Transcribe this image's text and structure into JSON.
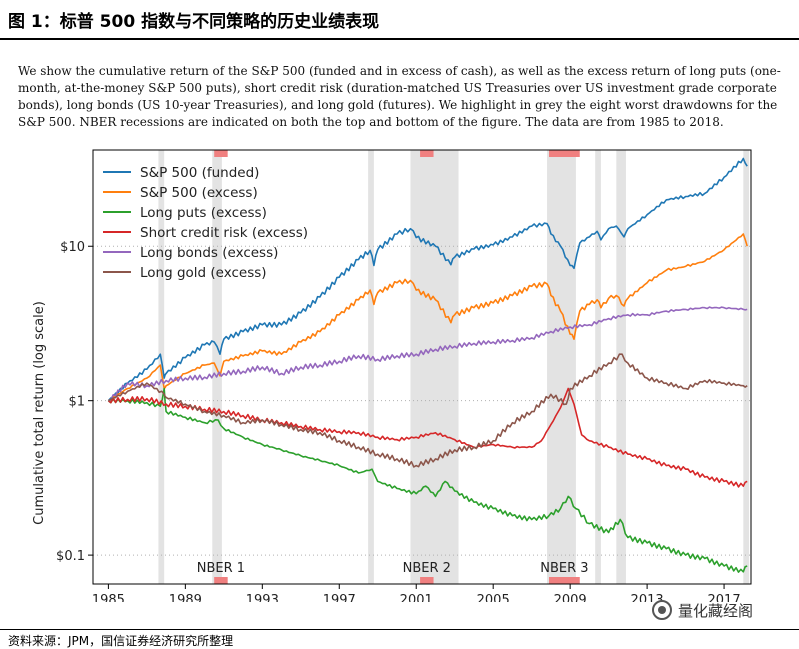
{
  "header": {
    "title": "图 1：标普 500 指数与不同策略的历史业绩表现"
  },
  "caption": "We show the cumulative return of the S&P 500 (funded and in excess of cash), as well as the excess return of long puts (one-month, at-the-money S&P 500 puts), short credit risk (duration-matched US Treasuries over US investment grade corporate bonds), long bonds (US 10-year Treasuries), and long gold (futures). We highlight in grey the eight worst drawdowns for the S&P 500. NBER recessions are indicated on both the top and bottom of the figure. The data are from 1985 to 2018.",
  "source": "资料来源：JPM，国信证券经济研究所整理",
  "watermark": "量化藏经阁",
  "chart_data": {
    "type": "line",
    "scale": "log",
    "ylabel": "Cumulative total return (log scale)",
    "xlabel": "",
    "xlim": [
      1984.2,
      2018.4
    ],
    "ylim": [
      0.065,
      42
    ],
    "x_ticks": [
      1985,
      1989,
      1993,
      1997,
      2001,
      2005,
      2009,
      2013,
      2017
    ],
    "x_tick_labels": [
      "1985",
      "1989",
      "1993",
      "1997",
      "2001",
      "2005",
      "2009",
      "2013",
      "2017"
    ],
    "y_ticks": [
      0.1,
      1,
      10
    ],
    "y_tick_labels": [
      "$0.1",
      "$1",
      "$10"
    ],
    "grid": "horizontal dotted",
    "legend_position": "top-left",
    "drawdowns": [
      [
        1987.6,
        1987.9
      ],
      [
        1990.4,
        1990.9
      ],
      [
        1998.5,
        1998.8
      ],
      [
        2000.7,
        2003.2
      ],
      [
        2007.8,
        2009.3
      ],
      [
        2010.3,
        2010.6
      ],
      [
        2011.4,
        2011.9
      ],
      [
        2018.0,
        2018.3
      ]
    ],
    "recessions": [
      {
        "label": "NBER 1",
        "start": 1990.5,
        "end": 1991.2
      },
      {
        "label": "NBER 2",
        "start": 2001.2,
        "end": 2001.9
      },
      {
        "label": "NBER 3",
        "start": 2007.9,
        "end": 2009.5
      }
    ],
    "series": [
      {
        "name": "S&P 500 (funded)",
        "color": "#1f77b4",
        "x": [
          1985,
          1986,
          1987,
          1987.7,
          1987.9,
          1988,
          1989,
          1990,
          1990.5,
          1990.8,
          1991,
          1992,
          1993,
          1994,
          1995,
          1996,
          1997,
          1998,
          1998.6,
          1998.8,
          1999,
          2000,
          2000.7,
          2001,
          2002,
          2002.8,
          2003,
          2004,
          2005,
          2006,
          2007,
          2007.8,
          2008,
          2008.5,
          2009,
          2009.2,
          2009.5,
          2010,
          2010.4,
          2010.6,
          2011,
          2011.4,
          2011.8,
          2012,
          2013,
          2014,
          2015,
          2016,
          2017,
          2018,
          2018.2
        ],
        "values": [
          1.0,
          1.3,
          1.6,
          2.0,
          1.4,
          1.5,
          1.9,
          2.3,
          2.4,
          2.0,
          2.5,
          2.8,
          3.1,
          3.1,
          3.7,
          4.7,
          6.3,
          8.2,
          9.4,
          7.5,
          9.5,
          12.0,
          13.0,
          11.4,
          10.0,
          7.6,
          8.5,
          9.6,
          10.2,
          11.5,
          13.5,
          14.0,
          12.0,
          10.0,
          7.5,
          7.2,
          10.5,
          11.5,
          12.5,
          11.0,
          13.0,
          13.5,
          11.5,
          13.0,
          16.0,
          20.0,
          21.0,
          22.0,
          28.0,
          37.0,
          33.0
        ]
      },
      {
        "name": "S&P 500 (excess)",
        "color": "#ff7f0e",
        "x": [
          1985,
          1986,
          1987,
          1987.7,
          1987.9,
          1988,
          1989,
          1990,
          1990.5,
          1990.8,
          1991,
          1992,
          1993,
          1994,
          1995,
          1996,
          1997,
          1998,
          1998.6,
          1998.8,
          1999,
          2000,
          2000.7,
          2001,
          2002,
          2002.8,
          2003,
          2004,
          2005,
          2006,
          2007,
          2007.8,
          2008,
          2008.5,
          2009,
          2009.2,
          2009.5,
          2010,
          2010.4,
          2010.6,
          2011,
          2011.4,
          2011.8,
          2012,
          2013,
          2014,
          2015,
          2016,
          2017,
          2018,
          2018.2
        ],
        "values": [
          1.0,
          1.2,
          1.4,
          1.7,
          1.2,
          1.25,
          1.5,
          1.7,
          1.75,
          1.45,
          1.8,
          1.95,
          2.1,
          2.0,
          2.4,
          2.8,
          3.6,
          4.5,
          5.2,
          4.2,
          5.0,
          5.8,
          6.0,
          5.2,
          4.5,
          3.2,
          3.6,
          4.0,
          4.3,
          4.8,
          5.5,
          5.7,
          4.8,
          3.8,
          2.7,
          2.5,
          3.8,
          4.2,
          4.5,
          4.0,
          4.6,
          4.8,
          4.1,
          4.6,
          5.8,
          7.0,
          7.4,
          8.0,
          9.5,
          12.0,
          10.0
        ]
      },
      {
        "name": "Long puts (excess)",
        "color": "#2ca02c",
        "x": [
          1985,
          1986,
          1987,
          1987.7,
          1987.9,
          1988,
          1989,
          1990,
          1990.7,
          1991,
          1992,
          1993,
          1994,
          1995,
          1996,
          1997,
          1998,
          1998.7,
          1999,
          2000,
          2001,
          2001.5,
          2002,
          2002.5,
          2003,
          2004,
          2005,
          2006,
          2007,
          2007.9,
          2008.5,
          2008.9,
          2009.3,
          2010,
          2011,
          2011.6,
          2012,
          2013,
          2014,
          2015,
          2016,
          2017,
          2018,
          2018.2
        ],
        "values": [
          1.0,
          1.0,
          0.97,
          0.92,
          1.2,
          0.85,
          0.78,
          0.72,
          0.75,
          0.66,
          0.58,
          0.52,
          0.48,
          0.44,
          0.41,
          0.38,
          0.34,
          0.36,
          0.3,
          0.27,
          0.25,
          0.28,
          0.24,
          0.3,
          0.26,
          0.22,
          0.2,
          0.18,
          0.17,
          0.18,
          0.2,
          0.24,
          0.2,
          0.16,
          0.14,
          0.17,
          0.13,
          0.12,
          0.11,
          0.1,
          0.095,
          0.085,
          0.078,
          0.085
        ]
      },
      {
        "name": "Short credit risk (excess)",
        "color": "#d62728",
        "x": [
          1985,
          1986,
          1987,
          1988,
          1989,
          1990,
          1991,
          1992,
          1993,
          1994,
          1995,
          1996,
          1997,
          1998,
          1999,
          2000,
          2001,
          2002,
          2003,
          2004,
          2005,
          2006,
          2007,
          2007.5,
          2008,
          2008.5,
          2008.9,
          2009.2,
          2009.6,
          2010,
          2011,
          2012,
          2013,
          2014,
          2015,
          2016,
          2017,
          2018,
          2018.2
        ],
        "values": [
          1.0,
          1.02,
          1.03,
          0.95,
          0.92,
          0.88,
          0.85,
          0.8,
          0.75,
          0.72,
          0.68,
          0.65,
          0.63,
          0.62,
          0.58,
          0.56,
          0.58,
          0.62,
          0.56,
          0.5,
          0.52,
          0.5,
          0.5,
          0.55,
          0.7,
          0.9,
          1.2,
          0.95,
          0.6,
          0.55,
          0.5,
          0.45,
          0.42,
          0.38,
          0.36,
          0.32,
          0.3,
          0.28,
          0.3
        ]
      },
      {
        "name": "Long bonds (excess)",
        "color": "#9467bd",
        "x": [
          1985,
          1986,
          1987,
          1988,
          1989,
          1990,
          1991,
          1992,
          1993,
          1994,
          1995,
          1996,
          1997,
          1998,
          1999,
          2000,
          2001,
          2002,
          2003,
          2004,
          2005,
          2006,
          2007,
          2008,
          2009,
          2010,
          2011,
          2012,
          2013,
          2014,
          2015,
          2016,
          2017,
          2018,
          2018.2
        ],
        "values": [
          1.0,
          1.3,
          1.25,
          1.35,
          1.4,
          1.42,
          1.5,
          1.55,
          1.65,
          1.5,
          1.65,
          1.7,
          1.8,
          1.95,
          1.85,
          1.95,
          2.0,
          2.15,
          2.25,
          2.35,
          2.4,
          2.45,
          2.55,
          2.8,
          3.0,
          3.1,
          3.4,
          3.6,
          3.6,
          3.8,
          3.9,
          4.0,
          4.0,
          3.9,
          3.9
        ]
      },
      {
        "name": "Long gold (excess)",
        "color": "#8c564b",
        "x": [
          1985,
          1986,
          1987,
          1987.9,
          1988,
          1989,
          1990,
          1991,
          1992,
          1993,
          1994,
          1995,
          1996,
          1997,
          1998,
          1999,
          2000,
          2001,
          2002,
          2003,
          2004,
          2005,
          2006,
          2007,
          2008,
          2008.8,
          2009,
          2010,
          2011,
          2011.7,
          2012,
          2013,
          2014,
          2015,
          2016,
          2017,
          2018,
          2018.2
        ],
        "values": [
          1.0,
          1.15,
          1.3,
          1.1,
          1.05,
          0.95,
          0.85,
          0.8,
          0.72,
          0.75,
          0.7,
          0.65,
          0.62,
          0.55,
          0.5,
          0.45,
          0.42,
          0.38,
          0.42,
          0.48,
          0.5,
          0.55,
          0.72,
          0.85,
          1.1,
          0.95,
          1.2,
          1.45,
          1.75,
          2.0,
          1.75,
          1.4,
          1.3,
          1.2,
          1.35,
          1.3,
          1.25,
          1.25
        ]
      }
    ]
  }
}
